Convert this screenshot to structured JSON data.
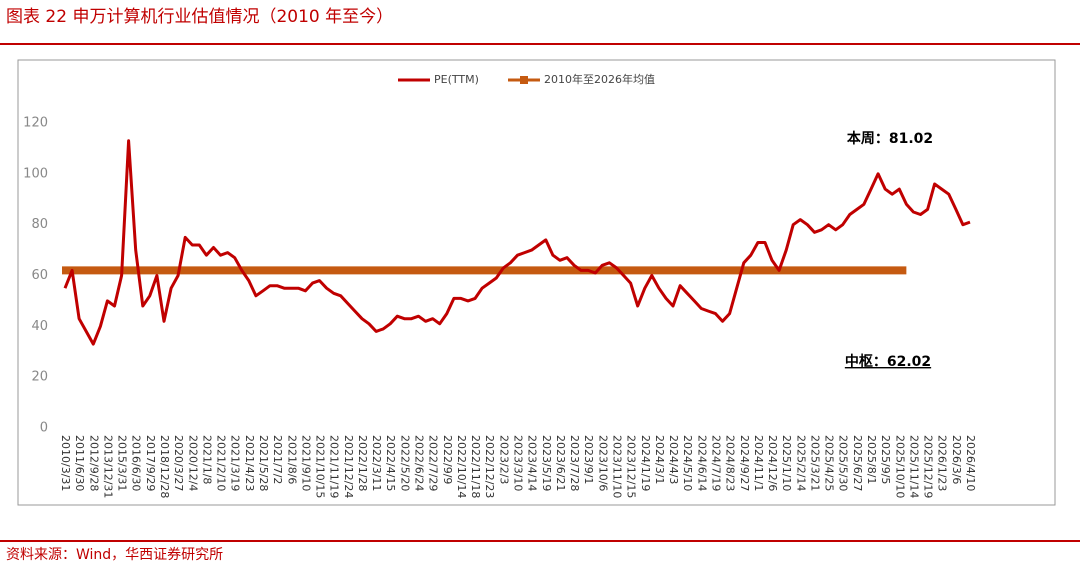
{
  "header": {
    "title": "图表 22   申万计算机行业估值情况（2010 年至今）"
  },
  "source": "资料来源：Wind，华西证券研究所",
  "chart_data": {
    "type": "line",
    "categories": [
      "2010/3/31",
      null,
      "2011/6/30",
      null,
      "2012/9/28",
      null,
      "2013/12/31",
      null,
      "2015/3/31",
      null,
      "2016/6/30",
      null,
      "2017/9/29",
      null,
      "2018/12/28",
      null,
      "2020/3/27",
      null,
      "2020/12/4",
      null,
      "2021/1/8",
      null,
      "2021/2/10",
      null,
      "2021/3/19",
      null,
      "2021/4/23",
      null,
      "2021/5/28",
      null,
      "2021/7/2",
      null,
      "2021/8/6",
      null,
      "2021/9/10",
      null,
      "2021/10/15",
      null,
      "2021/11/19",
      null,
      "2021/12/24",
      null,
      "2022/1/28",
      null,
      "2022/3/11",
      null,
      "2022/4/15",
      null,
      "2022/5/20",
      null,
      "2022/6/24",
      null,
      "2022/7/29",
      null,
      "2022/9/9",
      null,
      "2022/10/14",
      null,
      "2022/11/18",
      null,
      "2022/12/23",
      null,
      "2023/2/3",
      null,
      "2023/3/10",
      null,
      "2023/4/14",
      null,
      "2023/5/19",
      null,
      "2023/6/21",
      null,
      "2023/7/28",
      null,
      "2023/9/1",
      null,
      "2023/10/6",
      null,
      "2023/11/10",
      null,
      "2023/12/15",
      null,
      "2024/1/19",
      null,
      "2024/3/1",
      null,
      "2024/4/3",
      null,
      "2024/5/10",
      null,
      "2024/6/14",
      null,
      "2024/7/19",
      null,
      "2024/8/23",
      null,
      "2024/9/27",
      null,
      "2024/11/1",
      null,
      "2024/12/6",
      null,
      "2025/1/10",
      null,
      "2025/2/14",
      null,
      "2025/3/21",
      null,
      "2025/4/25",
      null,
      "2025/5/30",
      null,
      "2025/6/27",
      null,
      "2025/8/1",
      null,
      "2025/9/5",
      null,
      "2025/10/10",
      null,
      "2025/11/14",
      null,
      "2025/12/19",
      null,
      "2026/1/23",
      null,
      "2026/3/6",
      null,
      "2026/4/10"
    ],
    "series": [
      {
        "name": "PE(TTM)",
        "color": "#c00000",
        "values": [
          55,
          62,
          43,
          38,
          33,
          40,
          50,
          48,
          60,
          113,
          70,
          48,
          52,
          60,
          42,
          55,
          60,
          75,
          72,
          72,
          68,
          71,
          68,
          69,
          67,
          62,
          58,
          52,
          54,
          56,
          56,
          55,
          55,
          55,
          54,
          57,
          58,
          55,
          53,
          52,
          49,
          46,
          43,
          41,
          38,
          39,
          41,
          44,
          43,
          43,
          44,
          42,
          43,
          41,
          45,
          51,
          51,
          50,
          51,
          55,
          57,
          59,
          63,
          65,
          68,
          69,
          70,
          72,
          74,
          68,
          66,
          67,
          64,
          62,
          62,
          61,
          64,
          65,
          63,
          60,
          57,
          48,
          55,
          60,
          55,
          51,
          48,
          56,
          53,
          50,
          47,
          46,
          45,
          42,
          45,
          55,
          65,
          68,
          73,
          73,
          66,
          62,
          70,
          80,
          82,
          80,
          77,
          78,
          80,
          78,
          80,
          84,
          86,
          88,
          94,
          100,
          94,
          92,
          94,
          88,
          85,
          84,
          86,
          96,
          94,
          92,
          86,
          80,
          81.02
        ]
      }
    ],
    "average": {
      "name": "2010年至2026年均值",
      "color": "#c55a11",
      "value": 62.02
    },
    "annotations": [
      "本周：81.02",
      "中枢：62.02"
    ],
    "ylim": [
      0,
      120
    ],
    "yticks": [
      0,
      20,
      40,
      60,
      80,
      100,
      120
    ]
  }
}
